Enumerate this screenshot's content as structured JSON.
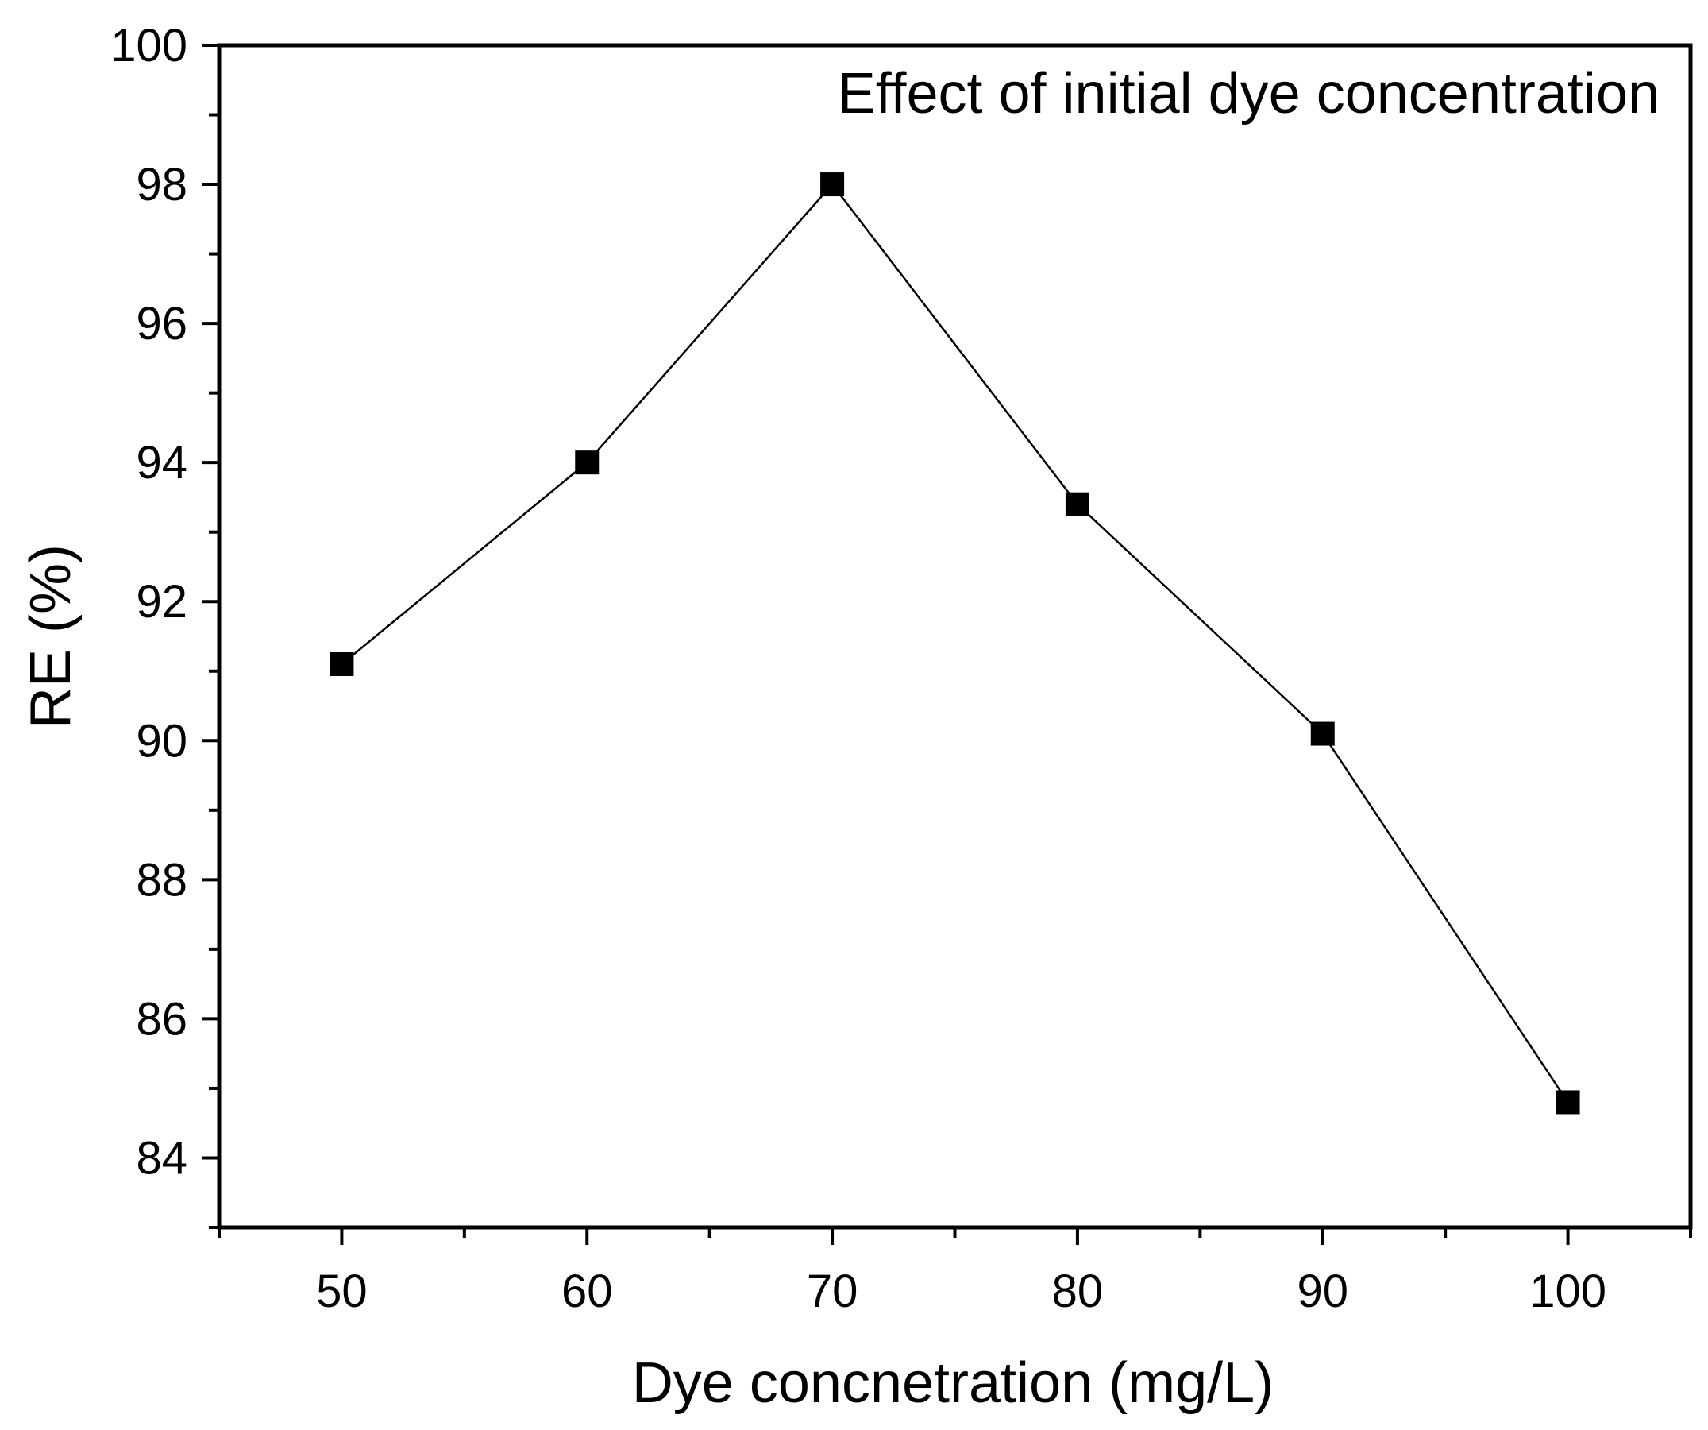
{
  "chart_data": {
    "type": "line",
    "title": "",
    "annotation": "Effect of initial dye concentration",
    "xlabel": "Dye concnetration (mg/L)",
    "ylabel": "RE (%)",
    "xlim": [
      45,
      105
    ],
    "ylim": [
      83,
      100
    ],
    "xticks": [
      50,
      60,
      70,
      80,
      90,
      100
    ],
    "yticks": [
      84,
      86,
      88,
      90,
      92,
      94,
      96,
      98,
      100
    ],
    "series": [
      {
        "name": "RE",
        "marker": "square",
        "color": "#000000",
        "x": [
          50,
          60,
          70,
          80,
          90,
          100
        ],
        "y": [
          91.1,
          94.0,
          98.0,
          93.4,
          90.1,
          84.8
        ]
      }
    ]
  }
}
